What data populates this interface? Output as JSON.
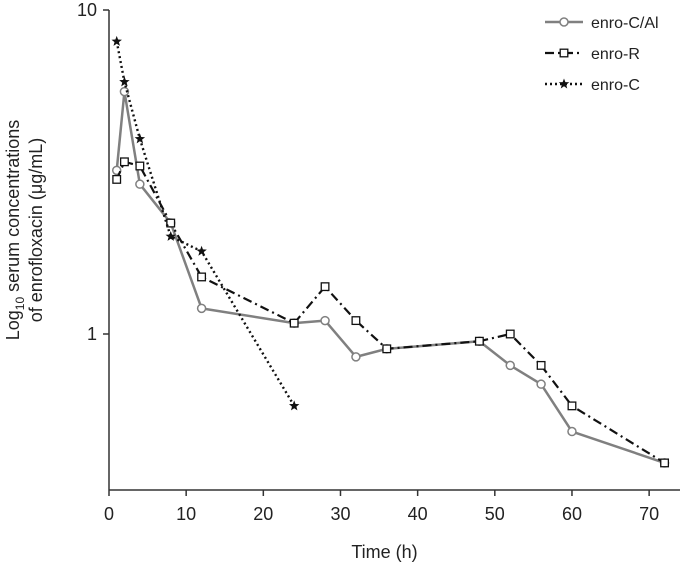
{
  "chart_data": {
    "type": "line",
    "title": "",
    "xlabel": "Time (h)",
    "ylabel_line1_prefix": "Log",
    "ylabel_line1_sub": "10",
    "ylabel_line1_rest": " serum concentrations",
    "ylabel_line2": "of enrofloxacin (μg/mL)",
    "xlim": [
      0,
      74
    ],
    "ylim": [
      0.33,
      10
    ],
    "y_scale": "log",
    "x_ticks": [
      "0",
      "10",
      "20",
      "30",
      "40",
      "50",
      "60",
      "70"
    ],
    "y_ticks": [
      "1",
      "10"
    ],
    "grid": false,
    "legend_position": "top-right",
    "series": [
      {
        "name": "enro-C/Al",
        "color": "#808080",
        "line_style": "solid",
        "marker": "circle",
        "x": [
          1,
          2,
          4,
          8,
          12,
          24,
          28,
          32,
          36,
          48,
          52,
          56,
          60,
          72
        ],
        "y": [
          3.2,
          5.6,
          2.9,
          2.2,
          1.2,
          1.08,
          1.1,
          0.85,
          0.9,
          0.95,
          0.8,
          0.7,
          0.5,
          0.4
        ]
      },
      {
        "name": "enro-R",
        "color": "#111111",
        "line_style": "dashdot",
        "marker": "square",
        "x": [
          1,
          2,
          4,
          8,
          12,
          24,
          28,
          32,
          36,
          48,
          52,
          56,
          60,
          72
        ],
        "y": [
          3.0,
          3.4,
          3.3,
          2.2,
          1.5,
          1.08,
          1.4,
          1.1,
          0.9,
          0.95,
          1.0,
          0.8,
          0.6,
          0.4
        ]
      },
      {
        "name": "enro-C",
        "color": "#111111",
        "line_style": "dotted",
        "marker": "star",
        "x": [
          1,
          2,
          4,
          8,
          12,
          24
        ],
        "y": [
          8.0,
          6.0,
          4.0,
          2.0,
          1.8,
          0.6
        ]
      }
    ]
  }
}
